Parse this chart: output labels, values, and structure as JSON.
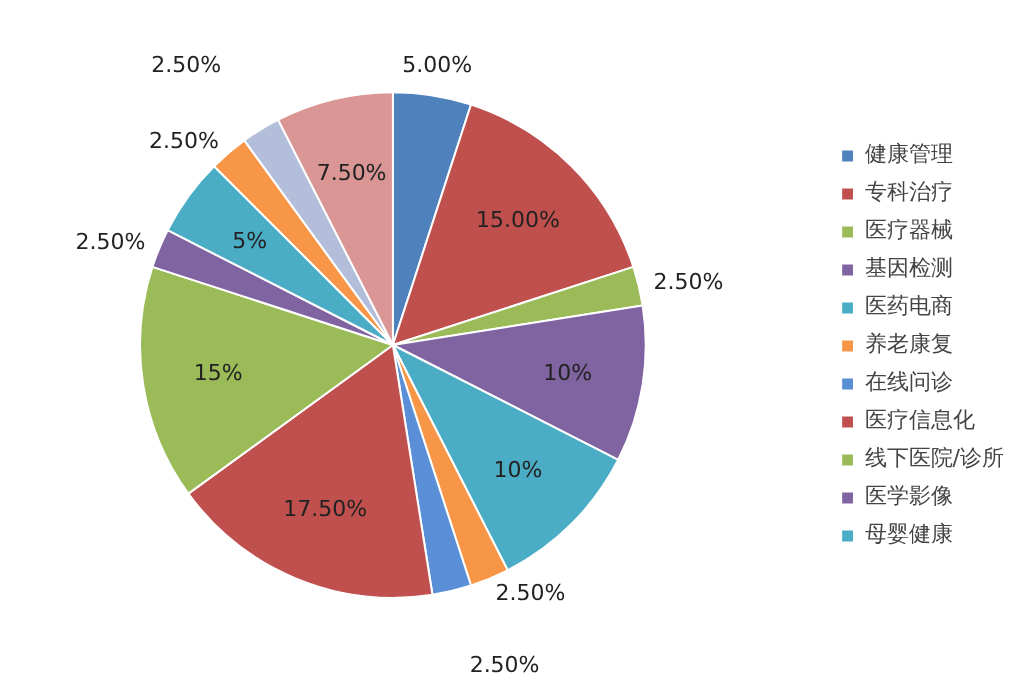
{
  "chart_data": {
    "type": "pie",
    "categories": [
      "健康管理",
      "专科治疗",
      "医疗器械",
      "基因检测",
      "医药电商",
      "养老康复",
      "在线问诊",
      "医疗信息化",
      "线下医院/诊所",
      "医学影像",
      "母婴健康",
      null,
      null,
      null
    ],
    "values": [
      5,
      15,
      2.5,
      10,
      10,
      2.5,
      2.5,
      17.5,
      15,
      2.5,
      5,
      2.5,
      2.5,
      7.5
    ],
    "colors": [
      "#4f81bd",
      "#c0504d",
      "#9bbb59",
      "#8064a2",
      "#4bacc6",
      "#f79646",
      "#5a8ed6",
      "#c0504d",
      "#9bbb59",
      "#8064a2",
      "#4bacc6",
      "#f79646",
      "#b3bedb",
      "#d99694"
    ],
    "value_labels": [
      "5.00%",
      "15.00%",
      "2.50%",
      "10%",
      "10%",
      "2.50%",
      "2.50%",
      "17.50%",
      "15%",
      "2.50%",
      "5%",
      "2.50%",
      "2.50%",
      "7.50%"
    ],
    "legend": "right"
  }
}
